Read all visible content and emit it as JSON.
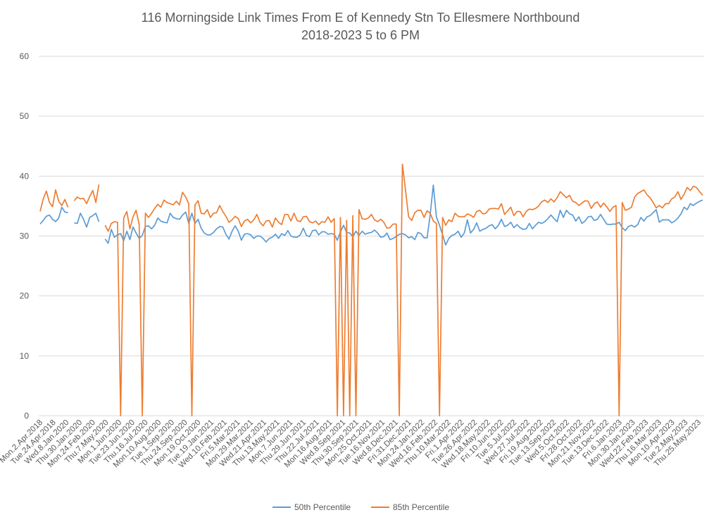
{
  "chart_data": {
    "type": "line",
    "title": "116 Morningside Link Times From E of Kennedy Stn To Ellesmere Northbound",
    "subtitle": "2018-2023 5 to 6 PM",
    "xlabel": "",
    "ylabel": "",
    "ylim": [
      0,
      60
    ],
    "yticks": [
      "0",
      "10",
      "20",
      "30",
      "40",
      "50",
      "60"
    ],
    "grid": true,
    "legend_position": "bottom",
    "x_tick_labels": [
      "Mon.2.Apr.2018",
      "Tue.24.Apr.2018",
      "Wed.8.Jan.2020",
      "Thu.30.Jan.2020",
      "Mon.24.Feb.2020",
      "Thu.7.May.2020",
      "Mon.1.Jun.2020",
      "Tue.23.Jun.2020",
      "Thu.16.Jul.2020",
      "Mon.10.Aug.2020",
      "Tue.1.Sep.2020",
      "Thu.24.Sep.2020",
      "Mon.19.Oct.2020",
      "Tue.19.Jan.2021",
      "Wed.10.Feb.2021",
      "Fri.5.Mar.2021",
      "Mon.29.Mar.2021",
      "Wed.21.Apr.2021",
      "Thu.13.May.2021",
      "Mon.7.Jun.2021",
      "Thu.29.Jun.2021",
      "Thu.22.Jul.2021",
      "Mon.16.Aug.2021",
      "Wed.8.Sep.2021",
      "Thu.30.Sep.2021",
      "Mon.25.Oct.2021",
      "Tue.16.Nov.2021",
      "Wed.8.Dec.2021",
      "Fri.31.Dec.2021",
      "Mon.24.Jan.2022",
      "Wed.16.Feb.2022",
      "Thu.10.Mar.2022",
      "Fri.1.Apr.2022",
      "Tue.26.Apr.2022",
      "Wed.18.May.2022",
      "Fri.10.Jun.2022",
      "Tue.5.Jul.2022",
      "Wed.27.Jul.2022",
      "Fri.19.Aug.2022",
      "Tue.13.Sep.2022",
      "Wed.5.Oct.2022",
      "Fri.28.Oct.2022",
      "Mon.21.Nov.2022",
      "Tue.13.Dec.2022",
      "Fri.6.Jan.2023",
      "Mon.30.Jan.2023",
      "Wed.22.Feb.2023",
      "Thu.16.Mar.2023",
      "Mon.10.Apr.2023",
      "Tue.2.May.2023",
      "Thu.25.May.2023"
    ],
    "series": [
      {
        "name": "50th Percentile",
        "color": "#5b9bd5",
        "values": [
          32.0,
          32.6,
          33.3,
          33.5,
          32.8,
          32.4,
          33.0,
          34.8,
          34.0,
          33.9,
          null,
          32.2,
          32.1,
          33.8,
          32.8,
          31.5,
          33.1,
          33.4,
          33.8,
          32.4,
          null,
          29.5,
          28.8,
          31.1,
          29.8,
          30.2,
          30.4,
          29.2,
          30.8,
          29.4,
          31.5,
          30.5,
          29.6,
          30.1,
          31.6,
          31.7,
          31.2,
          31.8,
          33.0,
          32.5,
          32.3,
          32.2,
          33.8,
          33.1,
          32.9,
          32.8,
          33.5,
          34.0,
          32.1,
          33.8,
          32.1,
          32.8,
          31.3,
          30.5,
          30.2,
          30.2,
          30.6,
          31.2,
          31.6,
          31.5,
          30.3,
          29.5,
          30.8,
          31.7,
          30.8,
          29.3,
          30.3,
          30.4,
          30.2,
          29.6,
          30.0,
          30.0,
          29.6,
          29.0,
          29.6,
          29.8,
          30.3,
          29.6,
          30.4,
          30.1,
          30.9,
          30.0,
          29.8,
          29.8,
          30.2,
          31.3,
          30.1,
          29.9,
          30.9,
          31.0,
          30.2,
          30.7,
          30.7,
          30.3,
          30.4,
          30.3,
          29.3,
          30.7,
          31.8,
          30.6,
          30.5,
          29.9,
          30.8,
          30.1,
          30.8,
          30.3,
          30.5,
          30.6,
          31.0,
          30.5,
          29.8,
          29.9,
          30.5,
          29.4,
          29.6,
          29.9,
          30.3,
          30.4,
          30.2,
          29.7,
          29.9,
          29.4,
          30.6,
          30.4,
          29.7,
          29.7,
          33.6,
          38.5,
          33.2,
          31.8,
          30.2,
          28.5,
          29.6,
          30.1,
          30.3,
          30.8,
          29.8,
          30.5,
          32.7,
          30.5,
          31.1,
          32.2,
          30.8,
          31.1,
          31.3,
          31.7,
          31.9,
          31.2,
          31.8,
          32.8,
          31.6,
          31.8,
          32.3,
          31.4,
          31.9,
          31.4,
          31.1,
          31.2,
          32.1,
          31.2,
          31.8,
          32.3,
          32.1,
          32.4,
          32.9,
          33.5,
          32.9,
          32.4,
          34.3,
          33.1,
          34.3,
          33.7,
          33.5,
          32.5,
          33.2,
          32.1,
          32.5,
          33.2,
          33.3,
          32.6,
          32.8,
          33.6,
          32.8,
          32.0,
          31.9,
          32.0,
          32.0,
          32.3,
          31.4,
          30.9,
          31.6,
          31.8,
          31.5,
          31.9,
          33.1,
          32.5,
          33.2,
          33.4,
          33.9,
          34.4,
          32.3,
          32.7,
          32.7,
          32.7,
          32.2,
          32.5,
          33.0,
          33.7,
          34.8,
          34.4,
          35.4,
          35.1,
          35.5,
          35.8,
          36.0
        ]
      },
      {
        "name": "85th Percentile",
        "color": "#ed7d31",
        "values": [
          34.1,
          36.2,
          37.5,
          35.6,
          34.9,
          37.7,
          35.8,
          35.1,
          36.1,
          34.8,
          null,
          35.9,
          36.5,
          36.2,
          36.3,
          35.4,
          36.6,
          37.6,
          35.6,
          38.6,
          null,
          31.8,
          30.8,
          32.1,
          32.4,
          32.3,
          0.0,
          33.0,
          34.1,
          31.2,
          33.2,
          34.3,
          31.9,
          0.0,
          33.8,
          33.1,
          33.8,
          34.6,
          35.3,
          34.8,
          36.0,
          35.6,
          35.4,
          35.2,
          35.8,
          35.2,
          37.3,
          36.5,
          35.4,
          0.0,
          35.2,
          35.9,
          33.8,
          33.7,
          34.4,
          33.1,
          33.8,
          33.9,
          35.1,
          34.1,
          33.3,
          32.3,
          32.7,
          33.3,
          32.9,
          31.6,
          32.5,
          32.8,
          32.2,
          32.7,
          33.6,
          32.3,
          31.7,
          32.5,
          32.6,
          31.5,
          33.0,
          32.3,
          31.9,
          33.6,
          33.6,
          32.5,
          33.8,
          32.6,
          32.4,
          33.2,
          33.3,
          32.4,
          32.2,
          32.5,
          31.9,
          32.4,
          32.3,
          33.2,
          32.3,
          32.9,
          0.0,
          33.1,
          0.0,
          32.6,
          0.0,
          33.4,
          0.0,
          34.4,
          32.9,
          32.8,
          33.0,
          33.6,
          32.7,
          32.4,
          32.8,
          32.3,
          31.3,
          31.4,
          32.0,
          32.0,
          0.0,
          42.0,
          37.7,
          33.2,
          32.6,
          33.9,
          34.3,
          34.3,
          33.1,
          34.2,
          33.8,
          32.5,
          32.1,
          0.0,
          33.1,
          31.8,
          32.7,
          32.4,
          33.8,
          33.3,
          33.2,
          33.2,
          33.7,
          33.5,
          33.1,
          34.1,
          34.3,
          33.7,
          33.8,
          34.5,
          34.6,
          34.6,
          34.5,
          35.4,
          33.6,
          34.2,
          34.8,
          33.4,
          34.1,
          34.1,
          33.2,
          34.1,
          34.5,
          34.4,
          34.6,
          35.0,
          35.7,
          36.0,
          35.6,
          36.2,
          35.7,
          36.4,
          37.4,
          36.9,
          36.4,
          36.8,
          35.8,
          35.6,
          35.1,
          35.5,
          35.9,
          35.8,
          34.6,
          35.4,
          35.7,
          34.8,
          35.5,
          34.9,
          34.1,
          34.8,
          35.1,
          0.0,
          35.6,
          34.3,
          34.5,
          34.8,
          36.5,
          37.1,
          37.4,
          37.7,
          36.9,
          36.4,
          35.6,
          34.7,
          35.1,
          34.7,
          35.4,
          35.4,
          36.2,
          36.5,
          37.4,
          36.1,
          37.0,
          38.1,
          37.6,
          38.3,
          38.1,
          37.4,
          36.8
        ]
      }
    ]
  }
}
